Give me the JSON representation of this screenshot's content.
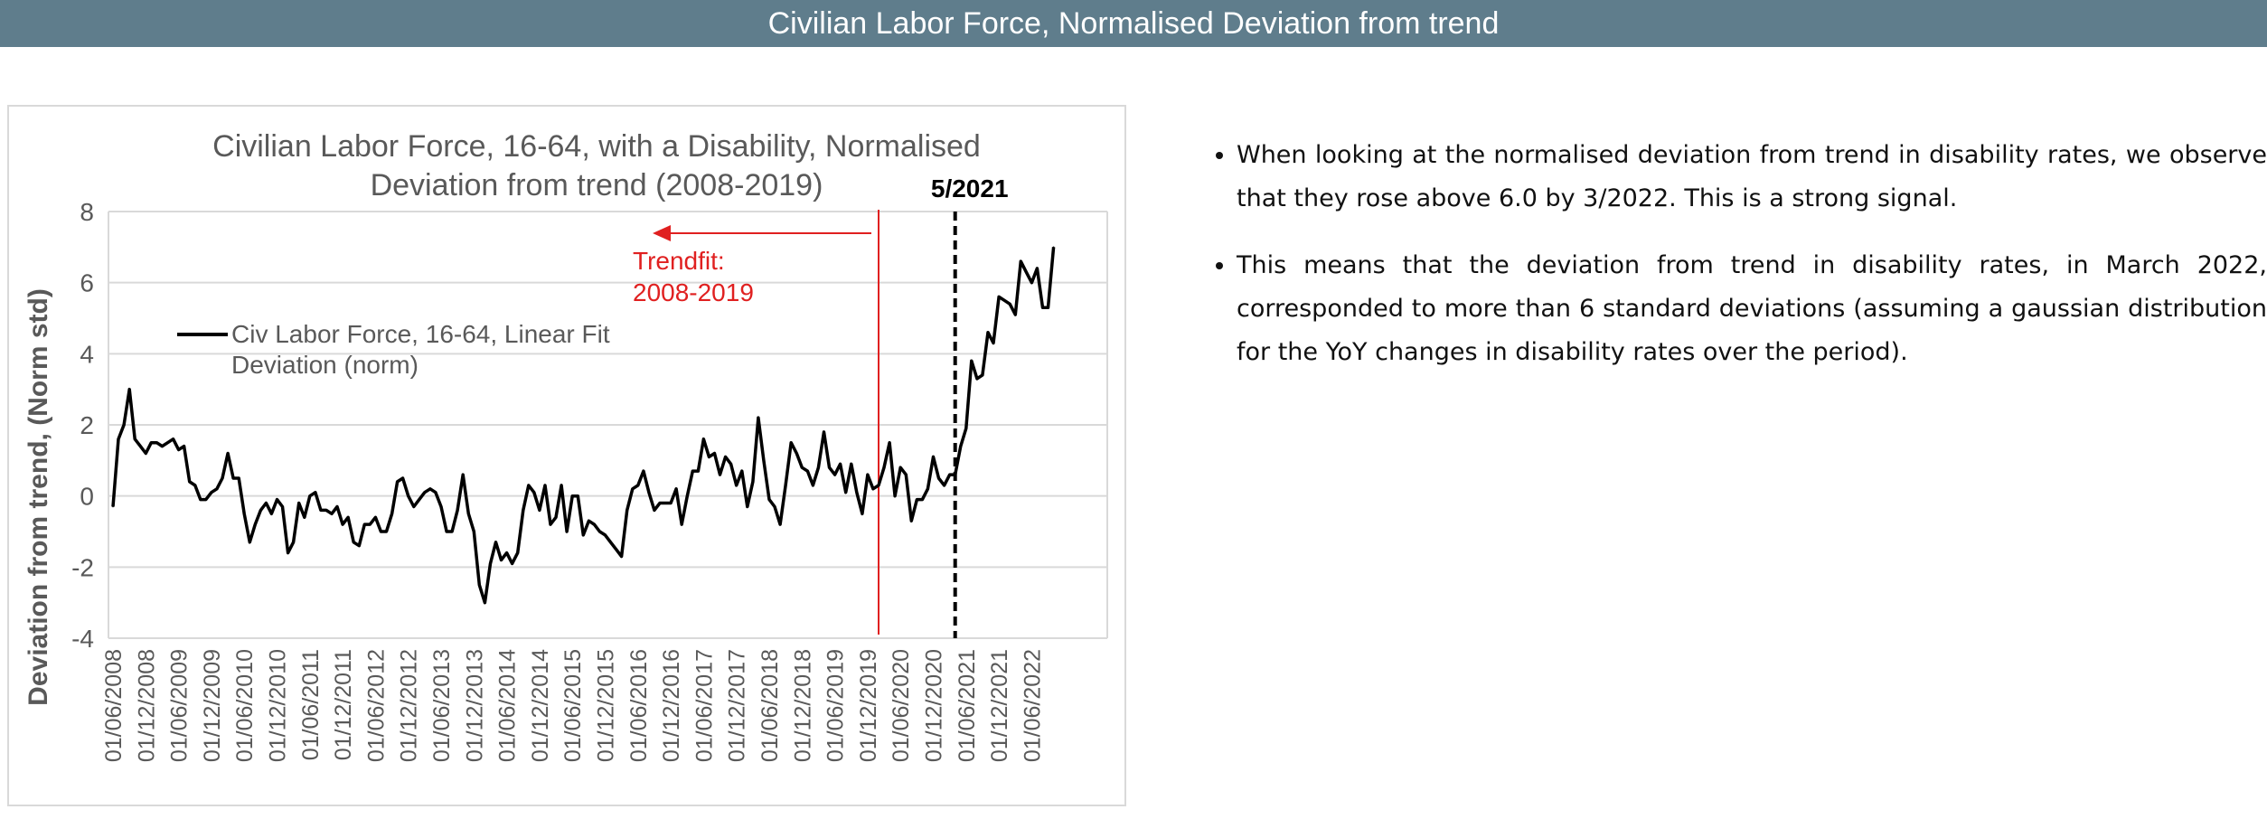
{
  "banner": {
    "title": "Civilian Labor Force, Normalised Deviation from trend"
  },
  "notes": [
    "When looking at the normalised deviation from trend in disability rates, we observe that they rose above 6.0 by 3/2022. This is a strong signal.",
    "This means that the deviation from trend in disability rates, in March 2022, corresponded to more than 6 standard deviations (assuming a gaussian distribution for the YoY changes in disability rates over the period)."
  ],
  "chart_data": {
    "type": "line",
    "title_line1": "Civilian Labor Force, 16-64, with a Disability, Normalised",
    "title_line2": "Deviation from trend (2008-2019)",
    "xlabel": "",
    "ylabel": "Deviation from trend, (Norm std)",
    "ylim": [
      -4,
      8
    ],
    "yticks": [
      "8",
      "6",
      "4",
      "2",
      "0",
      "-2",
      "-4"
    ],
    "grid": true,
    "legend": "Civ Labor Force, 16-64, Linear Fit Deviation (norm)",
    "xtick_labels": [
      "01/06/2008",
      "01/12/2008",
      "01/06/2009",
      "01/12/2009",
      "01/06/2010",
      "01/12/2010",
      "01/06/2011",
      "01/12/2011",
      "01/06/2012",
      "01/12/2012",
      "01/06/2013",
      "01/12/2013",
      "01/06/2014",
      "01/12/2014",
      "01/06/2015",
      "01/12/2015",
      "01/06/2016",
      "01/12/2016",
      "01/06/2017",
      "01/12/2017",
      "01/06/2018",
      "01/12/2018",
      "01/06/2019",
      "01/12/2019",
      "01/06/2020",
      "01/12/2020",
      "01/06/2021",
      "01/12/2021",
      "01/06/2022"
    ],
    "x_start_index": 0,
    "values": [
      -0.3,
      1.6,
      2.0,
      3.0,
      1.6,
      1.4,
      1.2,
      1.5,
      1.5,
      1.4,
      1.5,
      1.6,
      1.3,
      1.4,
      0.4,
      0.3,
      -0.1,
      -0.1,
      0.1,
      0.2,
      0.5,
      1.2,
      0.5,
      0.5,
      -0.5,
      -1.3,
      -0.8,
      -0.4,
      -0.2,
      -0.5,
      -0.1,
      -0.3,
      -1.6,
      -1.3,
      -0.2,
      -0.6,
      0.0,
      0.1,
      -0.4,
      -0.4,
      -0.5,
      -0.3,
      -0.8,
      -0.6,
      -1.3,
      -1.4,
      -0.8,
      -0.8,
      -0.6,
      -1.0,
      -1.0,
      -0.5,
      0.4,
      0.5,
      0.0,
      -0.3,
      -0.1,
      0.1,
      0.2,
      0.1,
      -0.3,
      -1.0,
      -1.0,
      -0.4,
      0.6,
      -0.5,
      -1.0,
      -2.5,
      -3.0,
      -1.9,
      -1.3,
      -1.8,
      -1.6,
      -1.9,
      -1.6,
      -0.4,
      0.3,
      0.1,
      -0.4,
      0.3,
      -0.8,
      -0.6,
      0.3,
      -1.0,
      0.0,
      0.0,
      -1.1,
      -0.7,
      -0.8,
      -1.0,
      -1.1,
      -1.3,
      -1.5,
      -1.7,
      -0.4,
      0.2,
      0.3,
      0.7,
      0.1,
      -0.4,
      -0.2,
      -0.2,
      -0.2,
      0.2,
      -0.8,
      0.0,
      0.7,
      0.7,
      1.6,
      1.1,
      1.2,
      0.6,
      1.1,
      0.9,
      0.3,
      0.7,
      -0.3,
      0.4,
      2.2,
      1.0,
      -0.1,
      -0.3,
      -0.8,
      0.3,
      1.5,
      1.2,
      0.8,
      0.7,
      0.3,
      0.8,
      1.8,
      0.8,
      0.6,
      0.9,
      0.1,
      0.9,
      0.1,
      -0.5,
      0.6,
      0.2,
      0.3,
      0.8,
      1.5,
      0.0,
      0.8,
      0.6,
      -0.7,
      -0.1,
      -0.1,
      0.2,
      1.1,
      0.5,
      0.3,
      0.6,
      0.6,
      1.4,
      1.9,
      3.8,
      3.3,
      3.4,
      4.6,
      4.3,
      5.6,
      5.5,
      5.4,
      5.1,
      6.6,
      6.3,
      6.0,
      6.4,
      5.3,
      5.3,
      7.0
    ],
    "annotations": [
      {
        "type": "vline",
        "x_index": 140,
        "color": "#e02020",
        "style": "solid"
      },
      {
        "type": "arrow",
        "label_line1": "Trendfit:",
        "label_line2": "2008-2019",
        "color": "#e02020"
      },
      {
        "type": "vline",
        "x_index": 154,
        "color": "#000000",
        "style": "dashed",
        "label": "5/2021"
      }
    ]
  }
}
